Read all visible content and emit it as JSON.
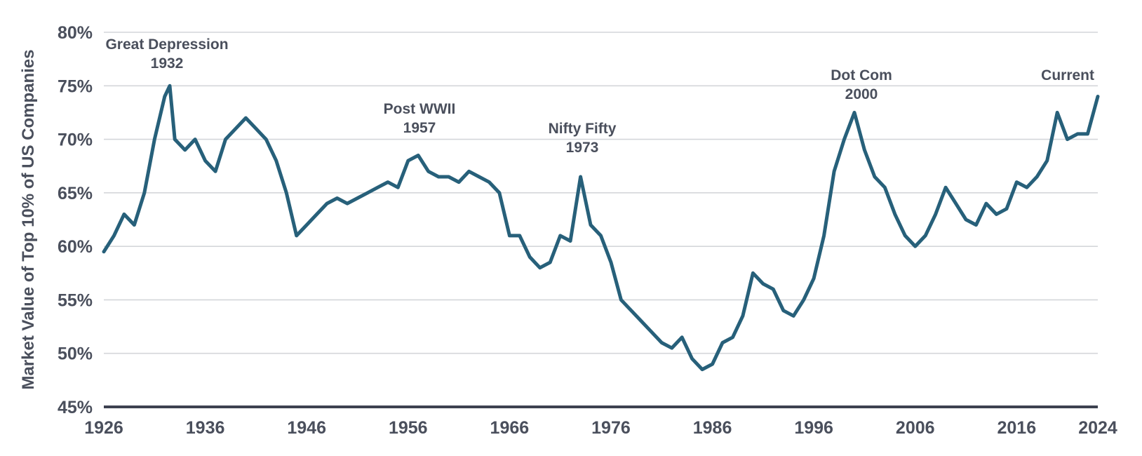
{
  "chart_data": {
    "type": "line",
    "title": "",
    "xlabel": "",
    "ylabel": "Market Value of Top 10% of US Companies",
    "xlim": [
      1926,
      2024
    ],
    "ylim": [
      45,
      80
    ],
    "x_ticks": [
      "1926",
      "1936",
      "1946",
      "1956",
      "1966",
      "1976",
      "1986",
      "1996",
      "2006",
      "2016",
      "2024"
    ],
    "y_ticks": [
      "45%",
      "50%",
      "55%",
      "60%",
      "65%",
      "70%",
      "75%",
      "80%"
    ],
    "grid": "horizontal",
    "line_color": "#27607a",
    "series": [
      {
        "name": "",
        "x": [
          1926,
          1927,
          1928,
          1929,
          1930,
          1931,
          1932,
          1932.5,
          1933,
          1934,
          1935,
          1936,
          1937,
          1938,
          1939,
          1940,
          1941,
          1942,
          1943,
          1944,
          1945,
          1946,
          1947,
          1948,
          1949,
          1950,
          1951,
          1952,
          1953,
          1954,
          1955,
          1956,
          1957,
          1958,
          1959,
          1960,
          1961,
          1962,
          1963,
          1964,
          1965,
          1966,
          1967,
          1968,
          1969,
          1970,
          1971,
          1972,
          1973,
          1974,
          1975,
          1976,
          1977,
          1978,
          1979,
          1980,
          1981,
          1982,
          1983,
          1984,
          1985,
          1986,
          1987,
          1988,
          1989,
          1990,
          1991,
          1992,
          1993,
          1994,
          1995,
          1996,
          1997,
          1998,
          1999,
          2000,
          2001,
          2002,
          2003,
          2004,
          2005,
          2006,
          2007,
          2008,
          2009,
          2010,
          2011,
          2012,
          2013,
          2014,
          2015,
          2016,
          2017,
          2018,
          2019,
          2020,
          2021,
          2022,
          2023,
          2024
        ],
        "values": [
          59.5,
          61,
          63,
          62,
          65,
          70,
          74,
          75,
          70,
          69,
          70,
          68,
          67,
          70,
          71,
          72,
          71,
          70,
          68,
          65,
          61,
          62,
          63,
          64,
          64.5,
          64,
          64.5,
          65,
          65.5,
          66,
          65.5,
          68,
          68.5,
          67,
          66.5,
          66.5,
          66,
          67,
          66.5,
          66,
          65,
          61,
          61,
          59,
          58,
          58.5,
          61,
          60.5,
          66.5,
          62,
          61,
          58.5,
          55,
          54,
          53,
          52,
          51,
          50.5,
          51.5,
          49.5,
          48.5,
          49,
          51,
          51.5,
          53.5,
          57.5,
          56.5,
          56,
          54,
          53.5,
          55,
          57,
          61,
          67,
          70,
          72.5,
          69,
          66.5,
          65.5,
          63,
          61,
          60,
          61,
          63,
          65.5,
          64,
          62.5,
          62,
          64,
          63,
          63.5,
          66,
          65.5,
          66.5,
          68,
          72.5,
          70,
          70.5,
          70.5,
          74
        ]
      }
    ],
    "annotations": [
      {
        "label": "Great Depression",
        "year": "1932"
      },
      {
        "label": "Post WWII",
        "year": "1957"
      },
      {
        "label": "Nifty Fifty",
        "year": "1973"
      },
      {
        "label": "Dot Com",
        "year": "2000"
      },
      {
        "label": "Current",
        "year": ""
      }
    ]
  }
}
